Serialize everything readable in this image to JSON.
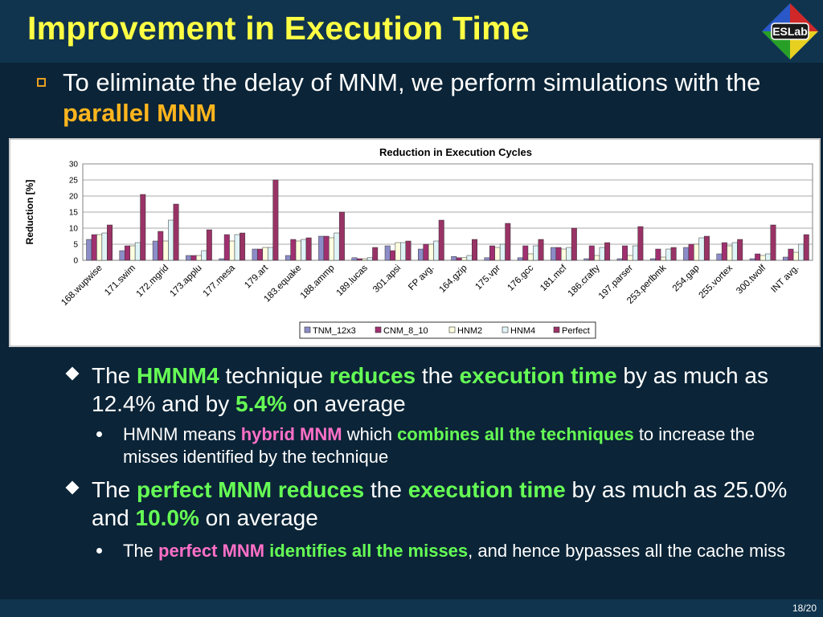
{
  "slide": {
    "title": "Improvement in Execution Time",
    "logo_text": "ESLab",
    "page": "18/20"
  },
  "intro": {
    "part1": "To eliminate the delay of MNM, we perform simulations with the ",
    "highlight": "parallel MNM"
  },
  "bullets": [
    {
      "segments": [
        "The ",
        "HMNM4",
        " technique ",
        "reduces",
        " the ",
        "execution time",
        " by as much as 12.4% and by ",
        "5.4%",
        " on average"
      ],
      "sub": {
        "segments": [
          "HMNM means ",
          "hybrid MNM",
          " which ",
          "combines all the techniques",
          " to increase the misses identified by the technique"
        ]
      }
    },
    {
      "segments": [
        "The ",
        "perfect MNM reduces",
        " the ",
        "execution time",
        " by as much as 25.0% and ",
        "10.0%",
        " on average"
      ],
      "sub": {
        "segments": [
          "The ",
          "perfect MNM",
          " ",
          "identifies all the misses",
          ", and hence bypasses all the cache miss"
        ]
      }
    }
  ],
  "colors": {
    "background": "#0b2437",
    "title": "#ffff44",
    "orange_highlight": "#ffb51e",
    "green_highlight": "#66ff55",
    "pink_highlight": "#ff70c8"
  },
  "chart_data": {
    "type": "bar",
    "title": "Reduction in Execution Cycles",
    "ylabel": "Reduction [%]",
    "ylim": [
      0,
      30
    ],
    "yticks": [
      "0",
      "5",
      "10",
      "15",
      "20",
      "25",
      "30"
    ],
    "grid": true,
    "legend_position": "bottom",
    "categories": [
      "168.wupwise",
      "171.swim",
      "172.mgrid",
      "173.applu",
      "177.mesa",
      "179.art",
      "183.equake",
      "188.ammp",
      "189.lucas",
      "301.apsi",
      "FP avg.",
      "164.gzip",
      "175.vpr",
      "176.gcc",
      "181.mcf",
      "186.crafty",
      "197.parser",
      "253.perlbmk",
      "254.gap",
      "255.vortex",
      "300.twolf",
      "INT avg."
    ],
    "series": [
      {
        "name": "TNM_12x3",
        "color": "#8c8cc8",
        "values": [
          6.5,
          3.0,
          6.0,
          1.5,
          0.5,
          3.5,
          1.5,
          7.5,
          0.8,
          4.5,
          3.5,
          1.2,
          0.8,
          0.8,
          4.0,
          0.5,
          0.5,
          0.5,
          4.0,
          2.0,
          0.5,
          1.0
        ]
      },
      {
        "name": "CNM_8_10",
        "color": "#a03070",
        "values": [
          8.0,
          4.5,
          9.0,
          1.5,
          8.0,
          3.5,
          6.5,
          7.5,
          0.5,
          3.0,
          5.0,
          0.8,
          4.5,
          4.5,
          4.0,
          4.5,
          4.5,
          3.5,
          5.0,
          5.5,
          2.0,
          3.5
        ]
      },
      {
        "name": "HNM2",
        "color": "#ffffe0",
        "values": [
          8.0,
          4.5,
          6.0,
          1.5,
          6.0,
          4.0,
          6.0,
          7.0,
          0.5,
          5.5,
          5.0,
          0.8,
          4.0,
          2.0,
          3.5,
          1.5,
          1.5,
          1.0,
          5.0,
          4.5,
          1.5,
          2.5
        ]
      },
      {
        "name": "HNM4",
        "color": "#e0f4f8",
        "values": [
          8.5,
          5.5,
          12.5,
          3.0,
          8.0,
          4.0,
          6.5,
          8.5,
          0.8,
          5.5,
          6.0,
          1.5,
          5.0,
          4.5,
          4.0,
          4.0,
          4.5,
          3.5,
          7.0,
          5.5,
          2.0,
          5.0
        ]
      },
      {
        "name": "Perfect",
        "color": "#993366",
        "values": [
          11.0,
          20.5,
          17.5,
          9.5,
          8.5,
          25.0,
          7.0,
          15.0,
          4.0,
          6.0,
          12.5,
          6.5,
          11.5,
          6.5,
          10.0,
          5.5,
          10.5,
          4.0,
          7.5,
          6.5,
          11.0,
          8.0
        ]
      }
    ]
  }
}
